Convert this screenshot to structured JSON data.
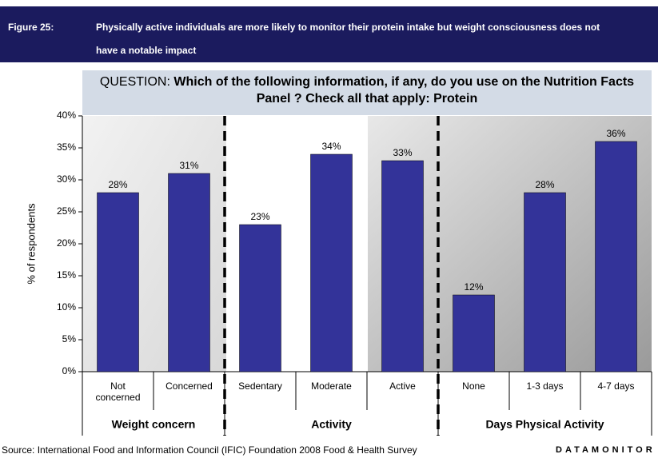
{
  "header": {
    "figure": "Figure 25:",
    "title": "Physically active individuals are more likely to monitor their protein intake but weight consciousness does not have a notable impact"
  },
  "chart_data": {
    "type": "bar",
    "question_label": "QUESTION:",
    "question": "Which of the following information, if any, do you use on the Nutrition Facts Panel ? Check all that apply: Protein",
    "ylabel": "% of respondents",
    "categories": [
      "Not concerned",
      "Concerned",
      "Sedentary",
      "Moderate",
      "Active",
      "None",
      "1-3 days",
      "4-7 days"
    ],
    "groups": [
      "Weight concern",
      "Activity",
      "Days Physical Activity"
    ],
    "values": [
      28,
      31,
      23,
      34,
      33,
      12,
      28,
      36
    ],
    "value_labels": [
      "28%",
      "31%",
      "23%",
      "34%",
      "33%",
      "12%",
      "28%",
      "36%"
    ],
    "color": "#333399",
    "ylim": [
      0,
      40
    ],
    "yticks": [
      {
        "value": 0,
        "label": "0%"
      },
      {
        "value": 5,
        "label": "5%"
      },
      {
        "value": 10,
        "label": "10%"
      },
      {
        "value": 15,
        "label": "15%"
      },
      {
        "value": 20,
        "label": "20%"
      },
      {
        "value": 25,
        "label": "25%"
      },
      {
        "value": 30,
        "label": "30%"
      },
      {
        "value": 35,
        "label": "35%"
      },
      {
        "value": 40,
        "label": "40%"
      }
    ]
  },
  "source": "Source: International Food and Information Council (IFIC) Foundation 2008 Food & Health Survey",
  "logo": "DATAMONITOR"
}
